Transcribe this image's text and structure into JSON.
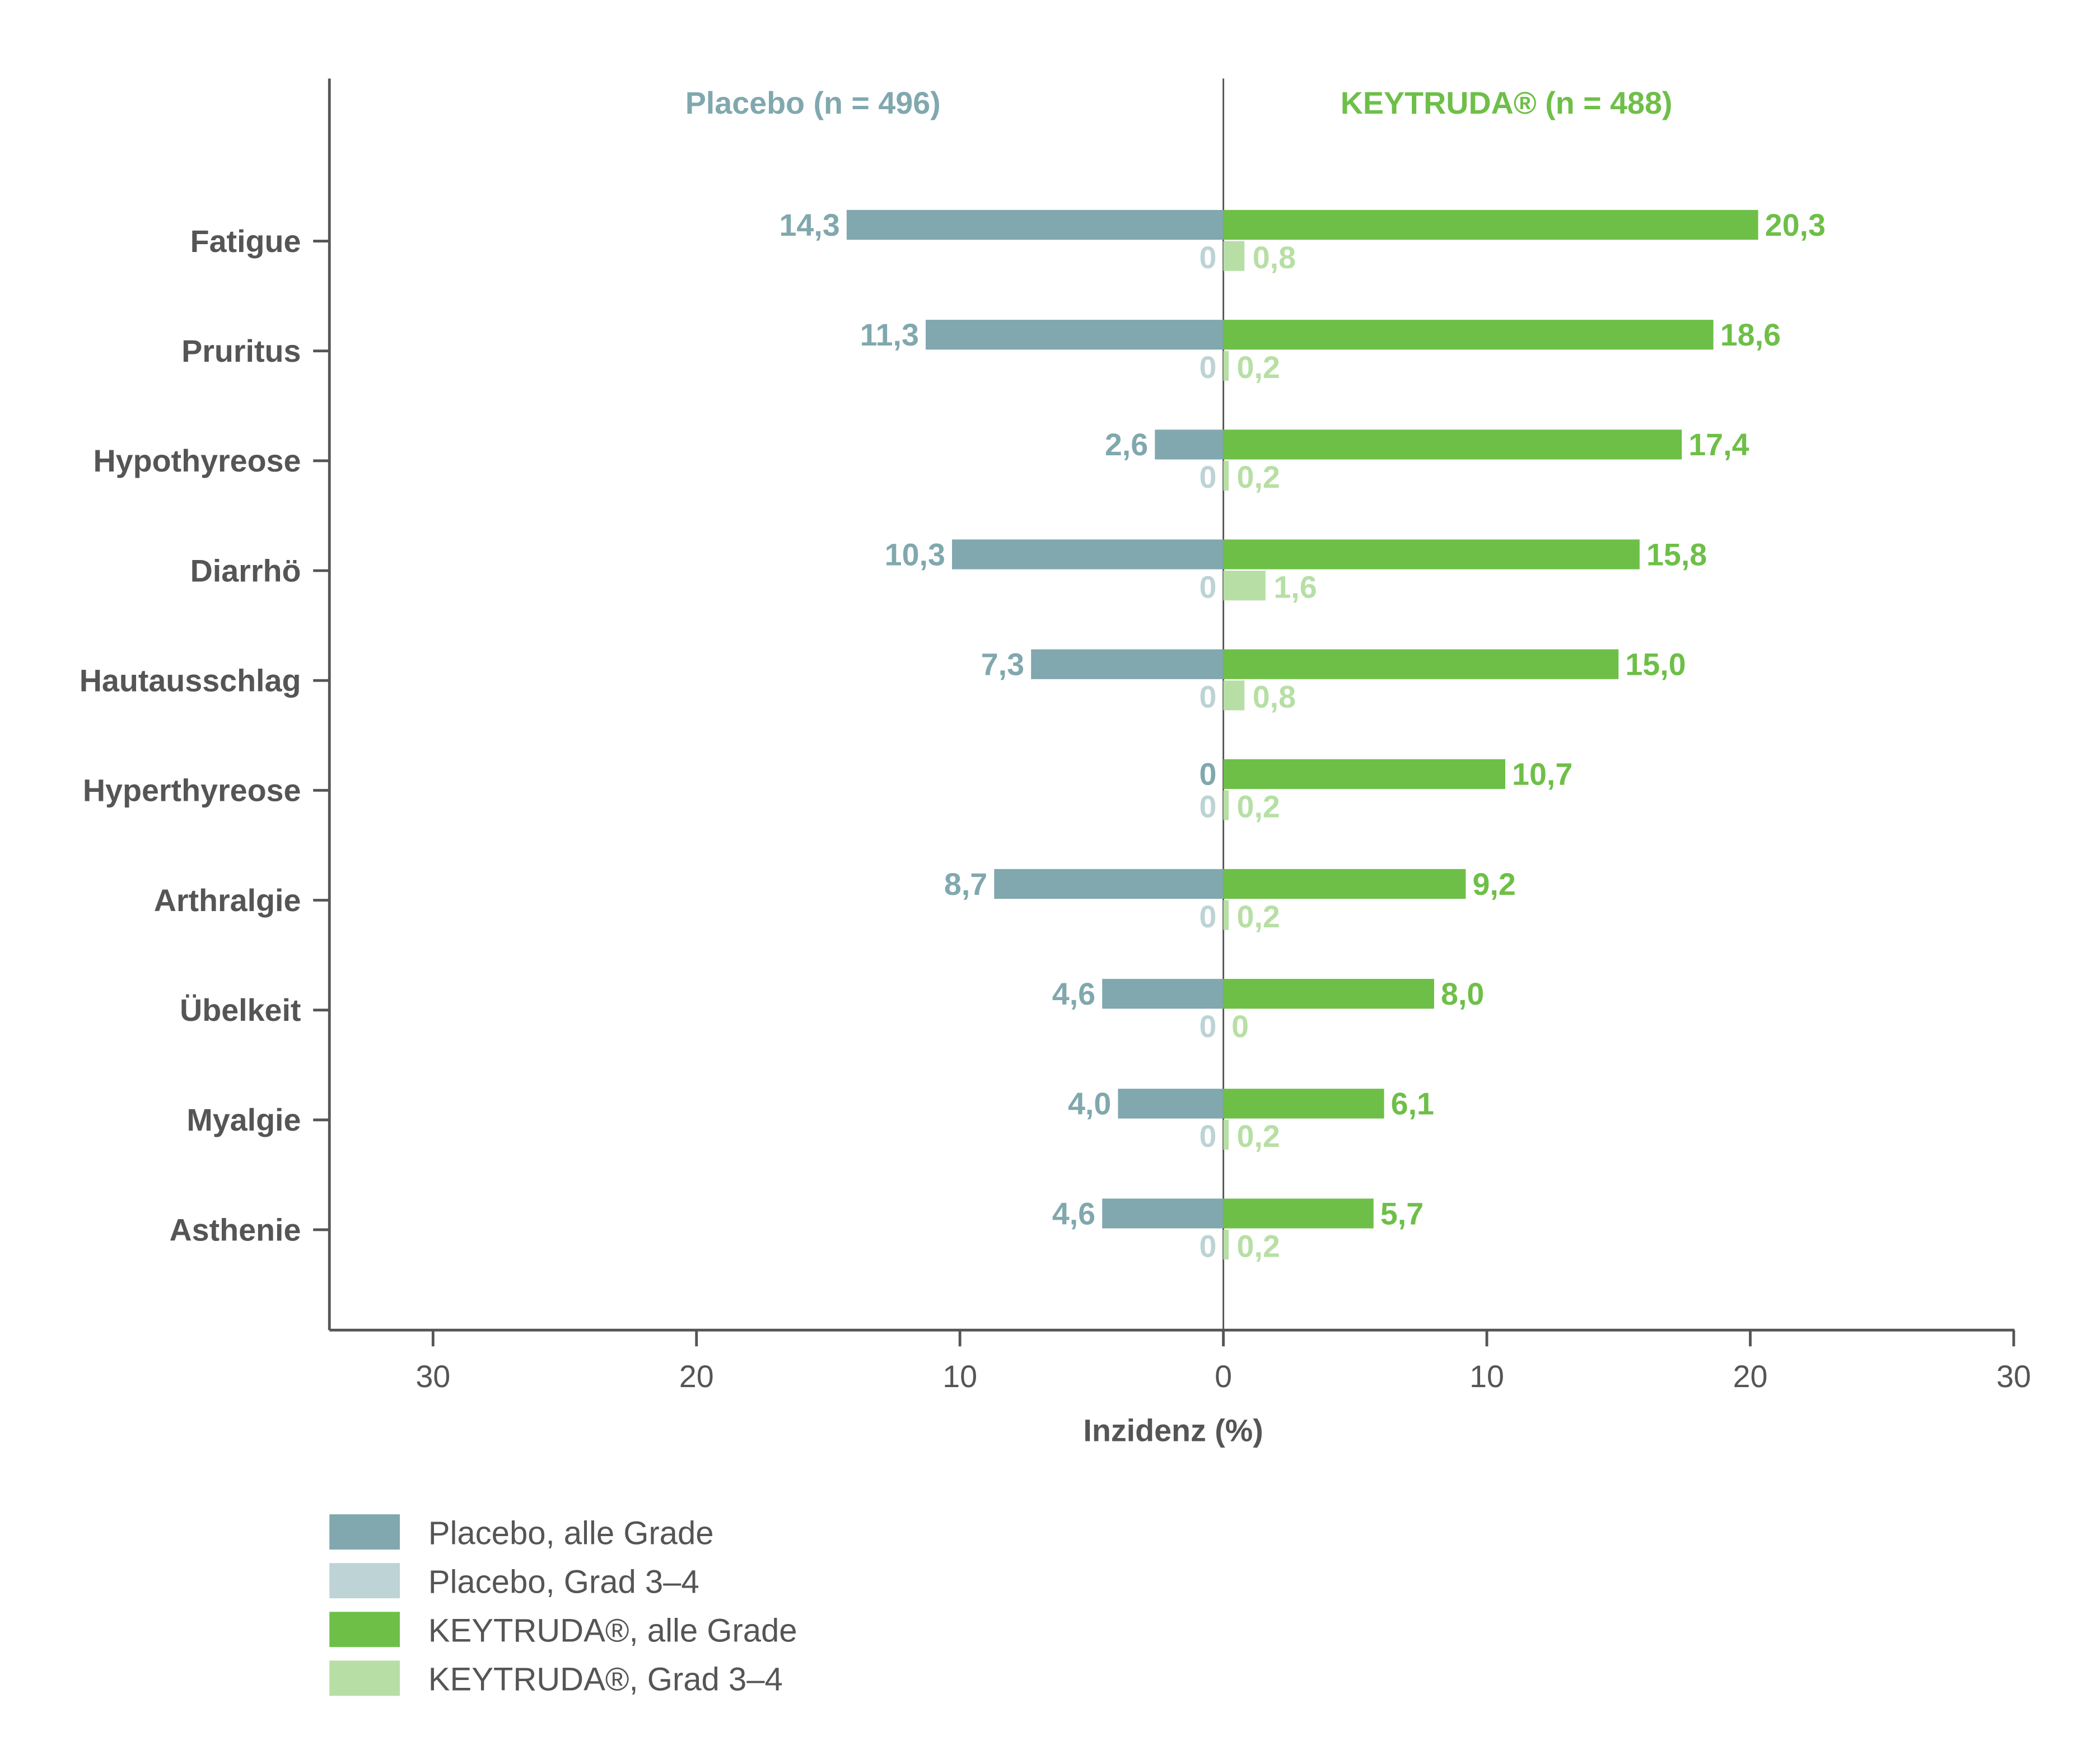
{
  "chart_data": {
    "type": "bar",
    "orientation": "horizontal-butterfly",
    "categories": [
      "Fatigue",
      "Pruritus",
      "Hypothyreose",
      "Diarrhö",
      "Hautausschlag",
      "Hyperthyreose",
      "Arthralgie",
      "Übelkeit",
      "Myalgie",
      "Asthenie"
    ],
    "group_titles": {
      "left": "Placebo (n = 496)",
      "right": "KEYTRUDA® (n = 488)"
    },
    "series": [
      {
        "name": "Placebo, alle Grade",
        "side": "left",
        "color": "#80a8ae",
        "values": [
          14.3,
          11.3,
          2.6,
          10.3,
          7.3,
          0,
          8.7,
          4.6,
          4.0,
          4.6
        ],
        "labels": [
          "14,3",
          "11,3",
          "2,6",
          "10,3",
          "7,3",
          "0",
          "8,7",
          "4,6",
          "4,0",
          "4,6"
        ]
      },
      {
        "name": "Placebo, Grad 3–4",
        "side": "left",
        "color": "#bdd3d6",
        "values": [
          0,
          0,
          0,
          0,
          0,
          0,
          0,
          0,
          0,
          0
        ],
        "labels": [
          "0",
          "0",
          "0",
          "0",
          "0",
          "0",
          "0",
          "0",
          "0",
          "0"
        ]
      },
      {
        "name": "KEYTRUDA®, alle Grade",
        "side": "right",
        "color": "#6ebf48",
        "values": [
          20.3,
          18.6,
          17.4,
          15.8,
          15.0,
          10.7,
          9.2,
          8.0,
          6.1,
          5.7
        ],
        "labels": [
          "20,3",
          "18,6",
          "17,4",
          "15,8",
          "15,0",
          "10,7",
          "9,2",
          "8,0",
          "6,1",
          "5,7"
        ]
      },
      {
        "name": "KEYTRUDA®, Grad 3–4",
        "side": "right",
        "color": "#b7dfa5",
        "values": [
          0.8,
          0.2,
          0.2,
          1.6,
          0.8,
          0.2,
          0.2,
          0,
          0.2,
          0.2
        ],
        "labels": [
          "0,8",
          "0,2",
          "0,2",
          "1,6",
          "0,8",
          "0,2",
          "0,2",
          "0",
          "0,2",
          "0,2"
        ]
      }
    ],
    "xlabel": "Inzidenz (%)",
    "xlim": [
      -34,
      30
    ],
    "xticks": [
      "30",
      "20",
      "10",
      "0",
      "10",
      "20",
      "30"
    ],
    "xtick_values": [
      -30,
      -20,
      -10,
      0,
      10,
      20,
      30
    ],
    "grid": false,
    "legend": "bottom-left"
  }
}
